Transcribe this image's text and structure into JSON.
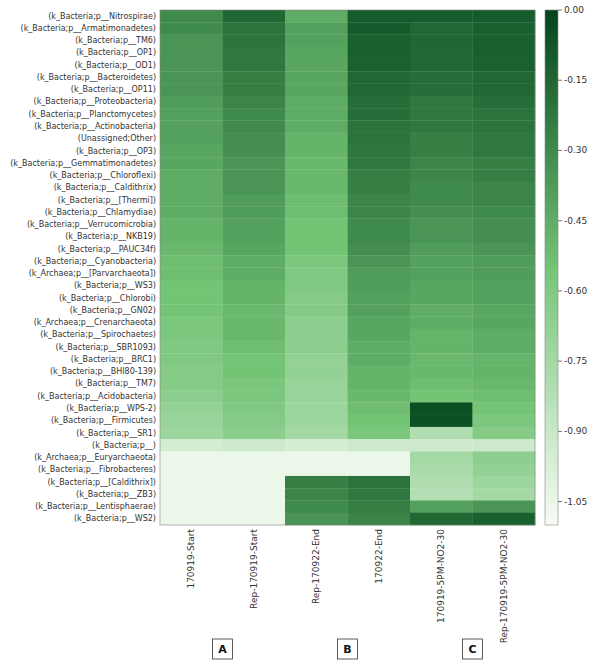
{
  "chart_data": {
    "type": "heatmap",
    "rows": [
      "(k_Bacteria;p__Nitrospirae)",
      "(k_Bacteria;p__Armatimonadetes)",
      "(k_Bacteria;p__TM6)",
      "(k_Bacteria;p__OP1)",
      "(k_Bacteria;p__OD1)",
      "(k_Bacteria;p__Bacteroidetes)",
      "(k_Bacteria;p__OP11)",
      "(k_Bacteria;p__Proteobacteria)",
      "(k_Bacteria;p__Planctomycetes)",
      "(k_Bacteria;p__Actinobacteria)",
      "(Unassigned;Other)",
      "(k_Bacteria;p__OP3)",
      "(k_Bacteria;p__Gemmatimonadetes)",
      "(k_Bacteria;p__Chloroflexi)",
      "(k_Bacteria;p__Caldithrix)",
      "(k_Bacteria;p__[Thermi])",
      "(k_Bacteria;p__Chlamydiae)",
      "(k_Bacteria;p__Verrucomicrobia)",
      "(k_Bacteria;p__NKB19)",
      "(k_Bacteria;p__PAUC34f)",
      "(k_Bacteria;p__Cyanobacteria)",
      "(k_Archaea;p__[Parvarchaeota])",
      "(k_Bacteria;p__WS3)",
      "(k_Bacteria;p__Chlorobi)",
      "(k_Bacteria;p__GN02)",
      "(k_Archaea;p__Crenarchaeota)",
      "(k_Bacteria;p__Spirochaetes)",
      "(k_Bacteria;p__SBR1093)",
      "(k_Bacteria;p__BRC1)",
      "(k_Bacteria;p__BHI80-139)",
      "(k_Bacteria;p__TM7)",
      "(k_Bacteria;p__Acidobacteria)",
      "(k_Bacteria;p__WPS-2)",
      "(k_Bacteria;p__Firmicutes)",
      "(k_Bacteria;p__SR1)",
      "(k_Bacteria;p__)",
      "(k_Archaea;p__Euryarchaeota)",
      "(k_Bacteria;p__Fibrobacteres)",
      "(k_Bacteria;p__[Caldithrix])",
      "(k_Bacteria;p__ZB3)",
      "(k_Bacteria;p__Lentisphaerae)",
      "(k_Bacteria;p__WS2)"
    ],
    "columns": [
      "170919-Start",
      "Rep-170919-Start",
      "Rep-170922-End",
      "170922-End",
      "170919-5PM-NO2-30",
      "Rep-170919-5PM-NO2-30"
    ],
    "values": [
      [
        -0.3,
        -0.15,
        -0.45,
        -0.1,
        -0.1,
        -0.1
      ],
      [
        -0.3,
        -0.2,
        -0.4,
        -0.1,
        -0.15,
        -0.12
      ],
      [
        -0.35,
        -0.2,
        -0.4,
        -0.12,
        -0.15,
        -0.12
      ],
      [
        -0.35,
        -0.22,
        -0.42,
        -0.12,
        -0.15,
        -0.12
      ],
      [
        -0.35,
        -0.22,
        -0.42,
        -0.12,
        -0.15,
        -0.12
      ],
      [
        -0.35,
        -0.25,
        -0.42,
        -0.15,
        -0.18,
        -0.15
      ],
      [
        -0.35,
        -0.25,
        -0.42,
        -0.15,
        -0.18,
        -0.15
      ],
      [
        -0.38,
        -0.28,
        -0.45,
        -0.18,
        -0.22,
        -0.18
      ],
      [
        -0.4,
        -0.3,
        -0.45,
        -0.18,
        -0.22,
        -0.2
      ],
      [
        -0.4,
        -0.3,
        -0.45,
        -0.2,
        -0.22,
        -0.2
      ],
      [
        -0.4,
        -0.32,
        -0.48,
        -0.2,
        -0.25,
        -0.22
      ],
      [
        -0.42,
        -0.32,
        -0.48,
        -0.22,
        -0.25,
        -0.22
      ],
      [
        -0.42,
        -0.35,
        -0.5,
        -0.22,
        -0.28,
        -0.25
      ],
      [
        -0.45,
        -0.35,
        -0.5,
        -0.25,
        -0.28,
        -0.25
      ],
      [
        -0.45,
        -0.35,
        -0.5,
        -0.25,
        -0.3,
        -0.28
      ],
      [
        -0.45,
        -0.38,
        -0.52,
        -0.28,
        -0.3,
        -0.28
      ],
      [
        -0.45,
        -0.38,
        -0.52,
        -0.28,
        -0.32,
        -0.3
      ],
      [
        -0.48,
        -0.4,
        -0.55,
        -0.3,
        -0.35,
        -0.32
      ],
      [
        -0.48,
        -0.4,
        -0.55,
        -0.3,
        -0.35,
        -0.32
      ],
      [
        -0.5,
        -0.42,
        -0.55,
        -0.32,
        -0.38,
        -0.35
      ],
      [
        -0.52,
        -0.45,
        -0.58,
        -0.35,
        -0.4,
        -0.38
      ],
      [
        -0.52,
        -0.45,
        -0.6,
        -0.38,
        -0.4,
        -0.38
      ],
      [
        -0.55,
        -0.48,
        -0.6,
        -0.38,
        -0.42,
        -0.4
      ],
      [
        -0.55,
        -0.48,
        -0.62,
        -0.4,
        -0.42,
        -0.4
      ],
      [
        -0.55,
        -0.5,
        -0.62,
        -0.4,
        -0.45,
        -0.42
      ],
      [
        -0.58,
        -0.5,
        -0.65,
        -0.42,
        -0.45,
        -0.42
      ],
      [
        -0.58,
        -0.5,
        -0.65,
        -0.42,
        -0.48,
        -0.45
      ],
      [
        -0.6,
        -0.52,
        -0.65,
        -0.45,
        -0.48,
        -0.45
      ],
      [
        -0.6,
        -0.55,
        -0.68,
        -0.45,
        -0.5,
        -0.48
      ],
      [
        -0.62,
        -0.55,
        -0.68,
        -0.48,
        -0.5,
        -0.48
      ],
      [
        -0.62,
        -0.58,
        -0.7,
        -0.48,
        -0.52,
        -0.5
      ],
      [
        -0.65,
        -0.58,
        -0.7,
        -0.5,
        -0.55,
        -0.52
      ],
      [
        -0.68,
        -0.6,
        -0.72,
        -0.52,
        -0.05,
        -0.55
      ],
      [
        -0.7,
        -0.62,
        -0.72,
        -0.55,
        -0.05,
        -0.58
      ],
      [
        -0.72,
        -0.65,
        -0.75,
        -0.58,
        -0.8,
        -0.62
      ],
      [
        -0.95,
        -0.92,
        -0.95,
        -0.92,
        -0.92,
        -0.92
      ],
      [
        -1.05,
        -1.05,
        -1.05,
        -1.05,
        -0.75,
        -0.65
      ],
      [
        -1.05,
        -1.05,
        -1.05,
        -1.05,
        -0.78,
        -0.68
      ],
      [
        -1.05,
        -1.05,
        -0.25,
        -0.2,
        -0.8,
        -0.72
      ],
      [
        -1.05,
        -1.05,
        -0.28,
        -0.22,
        -0.82,
        -0.75
      ],
      [
        -1.05,
        -1.05,
        -0.3,
        -0.25,
        -0.4,
        -0.35
      ],
      [
        -1.05,
        -1.05,
        -0.35,
        -0.28,
        -0.15,
        -0.12
      ]
    ],
    "color": "#00441b",
    "colorbar": {
      "range": [
        -1.1,
        0.0
      ],
      "ticks": [
        {
          "value": 0.0,
          "label": "0.00"
        },
        {
          "value": -0.15,
          "label": "-0.15"
        },
        {
          "value": -0.3,
          "label": "-0.30"
        },
        {
          "value": -0.45,
          "label": "-0.45"
        },
        {
          "value": -0.6,
          "label": "-0.60"
        },
        {
          "value": -0.75,
          "label": "-0.75"
        },
        {
          "value": -0.9,
          "label": "-0.90"
        },
        {
          "value": -1.05,
          "label": "-1.05"
        }
      ]
    },
    "annotations": [
      {
        "text": "A",
        "columns": [
          "170919-Start",
          "Rep-170919-Start"
        ]
      },
      {
        "text": "B",
        "columns": [
          "Rep-170922-End",
          "170922-End"
        ]
      },
      {
        "text": "C",
        "columns": [
          "170919-5PM-NO2-30",
          "Rep-170919-5PM-NO2-30"
        ]
      }
    ]
  }
}
